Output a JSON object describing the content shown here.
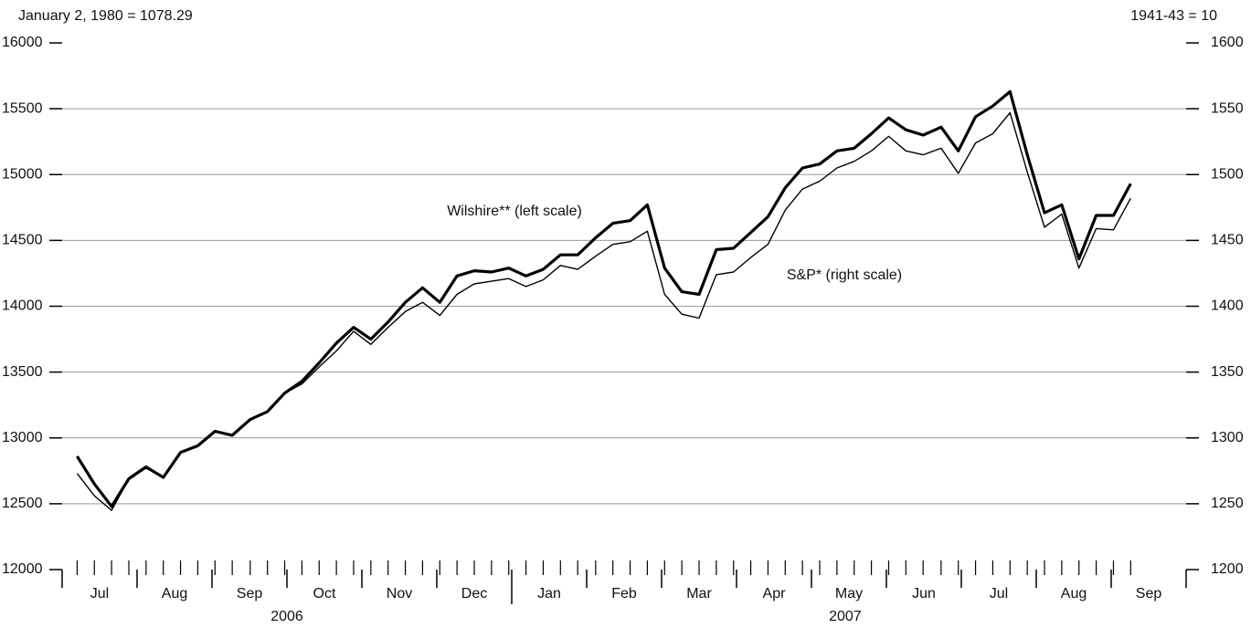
{
  "chart_data": {
    "type": "line",
    "ylabel": "January 2, 1980 = 1078.29",
    "y2label": "1941-43 = 10",
    "annotations": [
      "Wilshire** (left scale)",
      "S&P* (right scale)"
    ],
    "xlim": [
      0,
      15
    ],
    "xticks": [
      {
        "value": 0.5,
        "label": "Jul"
      },
      {
        "value": 1.5,
        "label": "Aug"
      },
      {
        "value": 2.5,
        "label": "Sep"
      },
      {
        "value": 3.5,
        "label": "Oct"
      },
      {
        "value": 4.5,
        "label": "Nov"
      },
      {
        "value": 5.5,
        "label": "Dec"
      },
      {
        "value": 6.5,
        "label": "Jan"
      },
      {
        "value": 7.5,
        "label": "Feb"
      },
      {
        "value": 8.5,
        "label": "Mar"
      },
      {
        "value": 9.5,
        "label": "Apr"
      },
      {
        "value": 10.5,
        "label": "May"
      },
      {
        "value": 11.5,
        "label": "Jun"
      },
      {
        "value": 12.5,
        "label": "Jul"
      },
      {
        "value": 13.5,
        "label": "Aug"
      },
      {
        "value": 14.5,
        "label": "Sep"
      }
    ],
    "year_labels": [
      {
        "value": 3,
        "label": "2006"
      },
      {
        "value": 10.45,
        "label": "2007"
      }
    ],
    "ylim": [
      12000,
      16000
    ],
    "yticks": [
      12000,
      12500,
      13000,
      13500,
      14000,
      14500,
      15000,
      15500,
      16000
    ],
    "y2lim": [
      1200,
      1600
    ],
    "y2ticks": [
      1200,
      1250,
      1300,
      1350,
      1400,
      1450,
      1500,
      1550,
      1600
    ],
    "grid": true,
    "x": [
      0.2,
      0.43,
      0.66,
      0.89,
      1.12,
      1.35,
      1.58,
      1.81,
      2.04,
      2.27,
      2.51,
      2.74,
      2.97,
      3.2,
      3.43,
      3.66,
      3.89,
      4.12,
      4.35,
      4.58,
      4.81,
      5.04,
      5.27,
      5.5,
      5.73,
      5.96,
      6.19,
      6.42,
      6.65,
      6.88,
      7.12,
      7.35,
      7.58,
      7.81,
      8.04,
      8.27,
      8.5,
      8.73,
      8.96,
      9.19,
      9.42,
      9.65,
      9.88,
      10.11,
      10.34,
      10.57,
      10.8,
      11.03,
      11.26,
      11.49,
      11.73,
      11.96,
      12.19,
      12.42,
      12.65,
      12.88,
      13.11,
      13.34,
      13.57,
      13.8,
      14.03,
      14.26
    ],
    "series": [
      {
        "name": "Wilshire",
        "color": "#000000",
        "width": 3.2,
        "values": [
          12860,
          12650,
          12480,
          12690,
          12780,
          12700,
          12890,
          12940,
          13050,
          13020,
          13140,
          13200,
          13340,
          13430,
          13570,
          13720,
          13840,
          13750,
          13880,
          14030,
          14140,
          14030,
          14230,
          14270,
          14260,
          14290,
          14230,
          14280,
          14390,
          14390,
          14520,
          14630,
          14650,
          14770,
          14290,
          14110,
          14090,
          14430,
          14440,
          14560,
          14680,
          14900,
          15050,
          15080,
          15180,
          15200,
          15310,
          15430,
          15340,
          15300,
          15360,
          15180,
          15440,
          15520,
          15630,
          15150,
          14710,
          14770,
          14360,
          14690,
          14690,
          14930
        ]
      },
      {
        "name": "S&P",
        "color": "#000000",
        "width": 1.4,
        "axis": "y2",
        "values": [
          1273,
          1256,
          1245,
          1269,
          1277,
          1270,
          1289,
          1294,
          1305,
          1302,
          1314,
          1320,
          1334,
          1341,
          1354,
          1366,
          1381,
          1371,
          1384,
          1396,
          1403,
          1393,
          1409,
          1417,
          1419,
          1421,
          1415,
          1420,
          1431,
          1428,
          1438,
          1447,
          1449,
          1457,
          1409,
          1394,
          1391,
          1424,
          1426,
          1437,
          1447,
          1473,
          1489,
          1495,
          1505,
          1510,
          1518,
          1529,
          1518,
          1515,
          1520,
          1501,
          1524,
          1531,
          1547,
          1502,
          1460,
          1470,
          1429,
          1459,
          1458,
          1482
        ]
      }
    ]
  }
}
